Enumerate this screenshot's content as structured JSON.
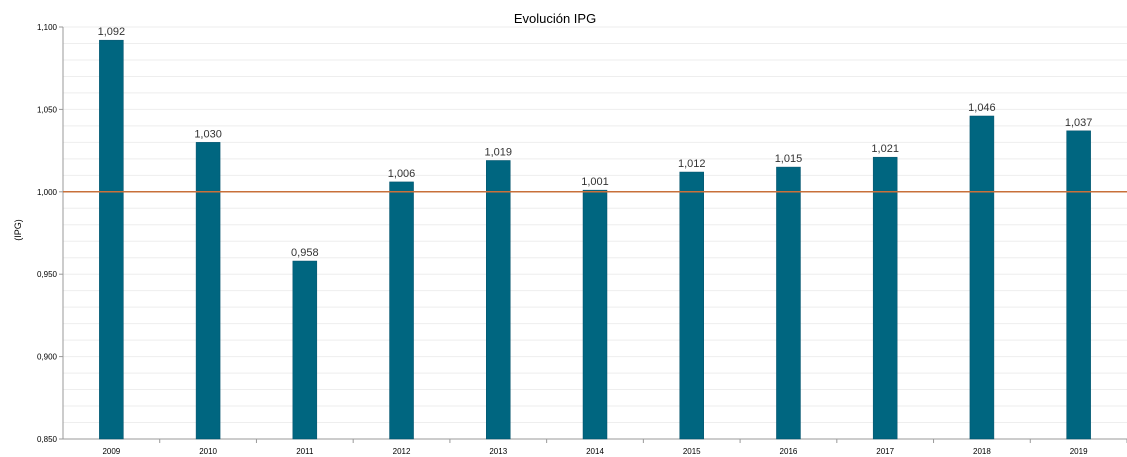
{
  "chart_data": {
    "type": "bar",
    "title": "Evolución IPG",
    "xlabel": "",
    "ylabel": "(IPG)",
    "categories": [
      "2009",
      "2010",
      "2011",
      "2012",
      "2013",
      "2014",
      "2015",
      "2016",
      "2017",
      "2018",
      "2019"
    ],
    "values": [
      1.092,
      1.03,
      0.958,
      1.006,
      1.019,
      1.001,
      1.012,
      1.015,
      1.021,
      1.046,
      1.037
    ],
    "data_labels": [
      "1,092",
      "1,030",
      "0,958",
      "1,006",
      "1,019",
      "1,001",
      "1,012",
      "1,015",
      "1,021",
      "1,046",
      "1,037"
    ],
    "ylim": [
      0.85,
      1.1
    ],
    "yticks": [
      0.85,
      0.9,
      0.95,
      1.0,
      1.05,
      1.1
    ],
    "ytick_labels": [
      "0,850",
      "0,900",
      "0,950",
      "1,000",
      "1,050",
      "1,100"
    ],
    "reference_line": 1.0,
    "grid": true,
    "legend": "none",
    "colors": {
      "bar": "#006680",
      "bar_edge": "#00506a",
      "reference_line": "#c8703a",
      "grid": "#eeeeee",
      "axis": "#999999"
    }
  }
}
